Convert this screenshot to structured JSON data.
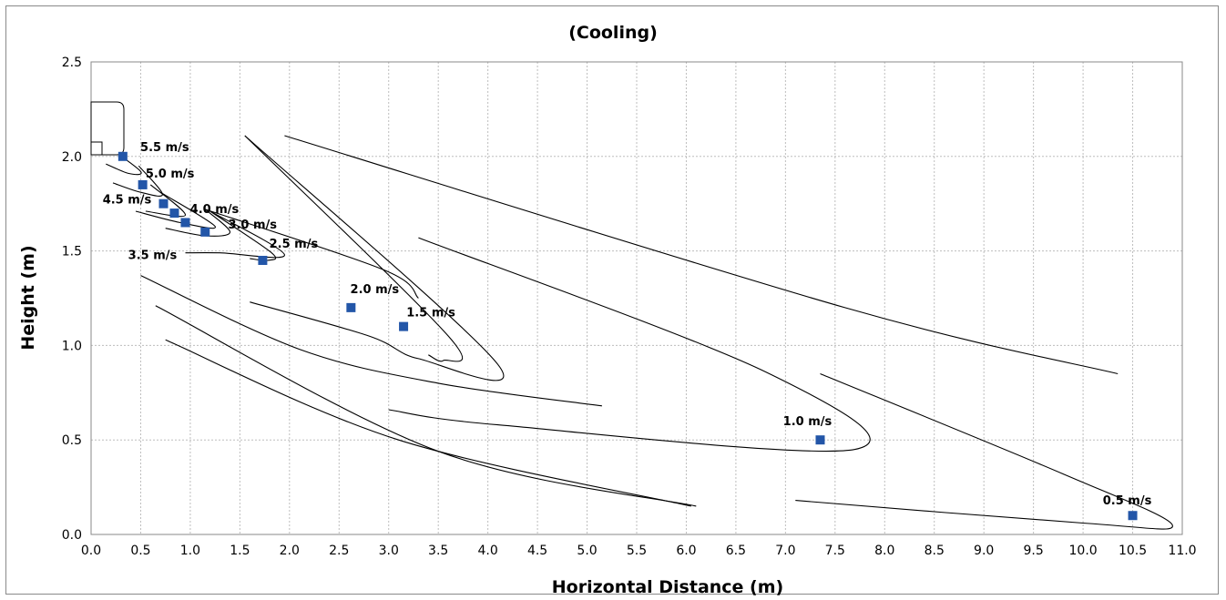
{
  "chart_data": {
    "type": "scatter",
    "title": "(Cooling)",
    "xlabel": "Horizontal Distance (m)",
    "ylabel": "Height (m)",
    "xlim": [
      0,
      11
    ],
    "ylim": [
      0,
      2.5
    ],
    "x_ticks": [
      "0.0",
      "0.5",
      "1.0",
      "1.5",
      "2.0",
      "2.5",
      "3.0",
      "3.5",
      "4.0",
      "4.5",
      "5.0",
      "5.5",
      "6.0",
      "6.5",
      "7.0",
      "7.5",
      "8.0",
      "8.5",
      "9.0",
      "9.5",
      "10.0",
      "10.5",
      "11.0"
    ],
    "y_ticks": [
      "0.0",
      "0.5",
      "1.0",
      "1.5",
      "2.0",
      "2.5"
    ],
    "grid": true,
    "marker_color": "#2356A8",
    "line_color": "#000000",
    "points": [
      {
        "label": "5.5 m/s",
        "x": 0.32,
        "y": 2.0
      },
      {
        "label": "5.0 m/s",
        "x": 0.52,
        "y": 1.85
      },
      {
        "label": "4.5 m/s",
        "x": 0.73,
        "y": 1.75
      },
      {
        "label": "4.0 m/s",
        "x": 0.84,
        "y": 1.7
      },
      {
        "label": "3.5 m/s",
        "x": 0.95,
        "y": 1.65
      },
      {
        "label": "3.0 m/s",
        "x": 1.15,
        "y": 1.6
      },
      {
        "label": "2.5 m/s",
        "x": 1.73,
        "y": 1.45
      },
      {
        "label": "2.0 m/s",
        "x": 2.62,
        "y": 1.2
      },
      {
        "label": "1.5 m/s",
        "x": 3.15,
        "y": 1.1
      },
      {
        "label": "1.0 m/s",
        "x": 7.35,
        "y": 0.5
      },
      {
        "label": "0.5 m/s",
        "x": 10.5,
        "y": 0.1
      }
    ],
    "contours": [
      [
        [
          0.2,
          2.04
        ],
        [
          0.5,
          1.92
        ],
        [
          0.38,
          1.91
        ],
        [
          0.15,
          1.96
        ]
      ],
      [
        [
          0.48,
          1.95
        ],
        [
          0.72,
          1.8
        ],
        [
          0.5,
          1.81
        ],
        [
          0.22,
          1.86
        ]
      ],
      [
        [
          0.6,
          1.85
        ],
        [
          0.95,
          1.69
        ],
        [
          0.55,
          1.71
        ]
      ],
      [
        [
          0.7,
          1.81
        ],
        [
          1.25,
          1.63
        ],
        [
          0.9,
          1.65
        ],
        [
          0.45,
          1.71
        ]
      ],
      [
        [
          1.15,
          1.72
        ],
        [
          1.4,
          1.6
        ],
        [
          1.15,
          1.58
        ],
        [
          0.75,
          1.62
        ]
      ],
      [
        [
          1.15,
          1.72
        ],
        [
          2.95,
          1.4
        ],
        [
          3.3,
          1.25
        ]
      ],
      [
        [
          1.2,
          1.71
        ],
        [
          1.95,
          1.48
        ],
        [
          1.3,
          1.49
        ],
        [
          0.95,
          1.49
        ]
      ],
      [
        [
          1.2,
          1.71
        ],
        [
          1.82,
          1.49
        ],
        [
          1.78,
          1.45
        ],
        [
          1.6,
          1.46
        ]
      ],
      [
        [
          1.55,
          2.11
        ],
        [
          3.6,
          1.05
        ],
        [
          3.55,
          0.92
        ],
        [
          3.4,
          0.95
        ]
      ],
      [
        [
          1.55,
          2.11
        ],
        [
          4.1,
          0.9
        ],
        [
          3.3,
          0.93
        ],
        [
          2.8,
          1.05
        ],
        [
          1.6,
          1.23
        ]
      ],
      [
        [
          1.95,
          2.11
        ],
        [
          7.6,
          1.2
        ],
        [
          10.35,
          0.85
        ]
      ],
      [
        [
          3.3,
          1.57
        ],
        [
          6.8,
          0.86
        ],
        [
          7.7,
          0.45
        ],
        [
          4.1,
          0.58
        ],
        [
          3.0,
          0.66
        ]
      ],
      [
        [
          0.5,
          1.37
        ],
        [
          2.1,
          0.98
        ],
        [
          3.5,
          0.8
        ],
        [
          5.15,
          0.68
        ]
      ],
      [
        [
          0.65,
          1.21
        ],
        [
          3.5,
          0.44
        ],
        [
          6.1,
          0.15
        ]
      ],
      [
        [
          0.75,
          1.03
        ],
        [
          3.1,
          0.5
        ],
        [
          6.05,
          0.15
        ]
      ],
      [
        [
          7.35,
          0.85
        ],
        [
          9.8,
          0.32
        ],
        [
          10.9,
          0.05
        ],
        [
          10.0,
          0.06
        ],
        [
          7.1,
          0.18
        ]
      ]
    ],
    "legend": "none"
  }
}
